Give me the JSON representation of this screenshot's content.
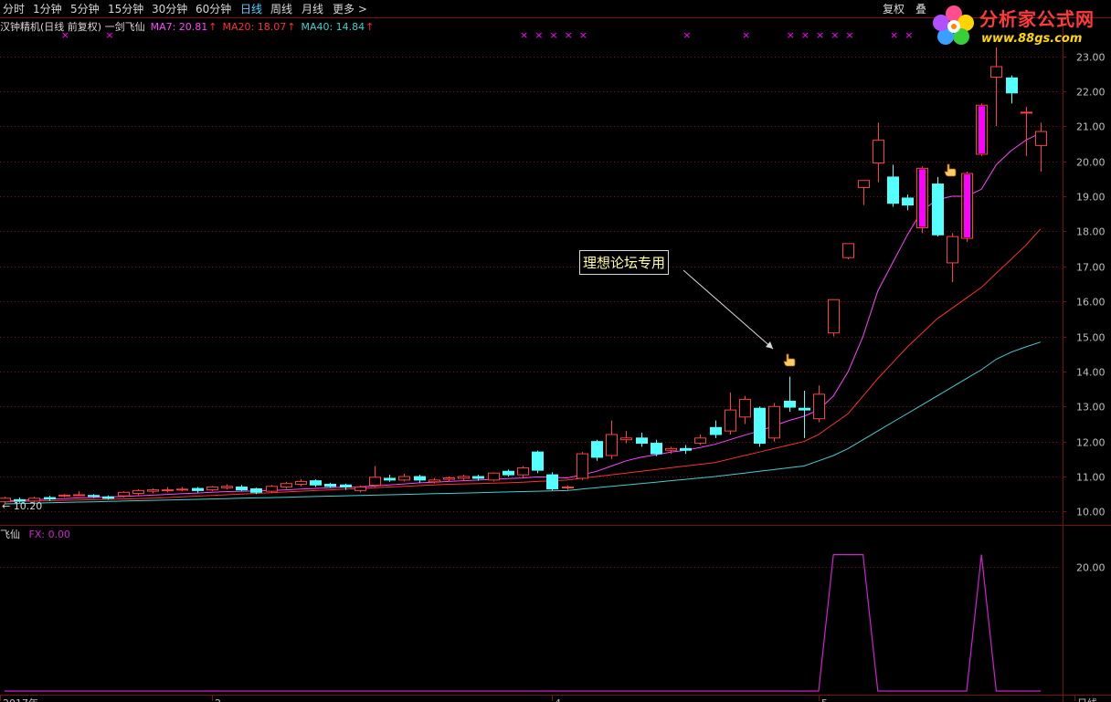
{
  "toolbar": {
    "periods": [
      "分时",
      "1分钟",
      "5分钟",
      "15分钟",
      "30分钟",
      "60分钟",
      "日线",
      "周线",
      "月线",
      "更多 >"
    ],
    "active_period": "日线",
    "right_buttons": [
      "复权",
      "叠"
    ]
  },
  "logo": {
    "title": "分析家公式网",
    "url": "www.88gs.com",
    "icon": "flower-logo-icon"
  },
  "legend": {
    "title": "汉钟精机(日线 前复权) 一剑飞仙",
    "ma7": "MA7: 20.81",
    "ma20": "MA20: 18.07",
    "ma40": "MA40: 14.84",
    "up_arrow": "↑"
  },
  "colors": {
    "up": "#ff4040",
    "down": "#54ffff",
    "ma7": "#ff44ff",
    "ma20": "#ff3030",
    "ma40": "#40d0d0",
    "signal": "#ff00ff",
    "fx": "#d020d0",
    "grid": "#7a1010",
    "axis_text": "#c0c0c0"
  },
  "annotation": {
    "text": "理想论坛专用",
    "icon": "pointing-hand-icon"
  },
  "low_label": "← 10.20",
  "sub_legend": {
    "title": "飞仙",
    "fx": "FX: 0.00"
  },
  "chart_data": [
    {
      "type": "candlestick",
      "ylim": [
        9.75,
        23.3
      ],
      "yticks": [
        10,
        11,
        12,
        13,
        14,
        15,
        16,
        17,
        18,
        19,
        20,
        21,
        22,
        23
      ],
      "ytick_labels": [
        "10.00",
        "11.00",
        "12.00",
        "13.00",
        "14.00",
        "15.00",
        "16.00",
        "17.00",
        "18.00",
        "19.00",
        "20.00",
        "21.00",
        "22.00",
        "23.00"
      ],
      "x_labels": [
        "2017年",
        "2",
        "4",
        "5",
        "日线"
      ],
      "candles": [
        [
          10.28,
          10.38,
          10.42,
          10.22
        ],
        [
          10.34,
          10.3,
          10.4,
          10.25
        ],
        [
          10.3,
          10.38,
          10.42,
          10.26
        ],
        [
          10.4,
          10.36,
          10.45,
          10.3
        ],
        [
          10.46,
          10.47,
          10.5,
          10.41
        ],
        [
          10.47,
          10.48,
          10.58,
          10.44
        ],
        [
          10.46,
          10.43,
          10.5,
          10.39
        ],
        [
          10.42,
          10.38,
          10.46,
          10.34
        ],
        [
          10.45,
          10.55,
          10.58,
          10.4
        ],
        [
          10.52,
          10.6,
          10.64,
          10.47
        ],
        [
          10.58,
          10.62,
          10.66,
          10.52
        ],
        [
          10.6,
          10.62,
          10.7,
          10.55
        ],
        [
          10.62,
          10.64,
          10.7,
          10.58
        ],
        [
          10.66,
          10.6,
          10.7,
          10.54
        ],
        [
          10.62,
          10.7,
          10.73,
          10.58
        ],
        [
          10.68,
          10.72,
          10.78,
          10.63
        ],
        [
          10.7,
          10.62,
          10.76,
          10.58
        ],
        [
          10.65,
          10.55,
          10.68,
          10.5
        ],
        [
          10.58,
          10.72,
          10.76,
          10.53
        ],
        [
          10.7,
          10.8,
          10.85,
          10.65
        ],
        [
          10.78,
          10.86,
          10.92,
          10.72
        ],
        [
          10.88,
          10.76,
          10.92,
          10.7
        ],
        [
          10.78,
          10.72,
          10.82,
          10.68
        ],
        [
          10.76,
          10.7,
          10.8,
          10.62
        ],
        [
          10.6,
          10.7,
          10.74,
          10.55
        ],
        [
          10.75,
          10.98,
          11.3,
          10.7
        ],
        [
          10.95,
          10.9,
          11.05,
          10.85
        ],
        [
          10.9,
          11.0,
          11.08,
          10.86
        ],
        [
          11.0,
          10.9,
          11.05,
          10.82
        ],
        [
          10.85,
          10.9,
          10.96,
          10.8
        ],
        [
          10.92,
          10.96,
          11.0,
          10.86
        ],
        [
          10.95,
          11.0,
          11.05,
          10.9
        ],
        [
          11.0,
          10.95,
          11.05,
          10.88
        ],
        [
          10.9,
          11.1,
          11.12,
          10.86
        ],
        [
          11.15,
          11.05,
          11.2,
          11.0
        ],
        [
          11.05,
          11.25,
          11.3,
          10.98
        ],
        [
          11.7,
          11.18,
          11.74,
          11.1
        ],
        [
          11.05,
          10.65,
          11.12,
          10.6
        ],
        [
          10.7,
          10.7,
          10.75,
          10.62
        ],
        [
          10.95,
          11.65,
          11.7,
          10.9
        ],
        [
          12.0,
          11.55,
          12.05,
          11.45
        ],
        [
          11.6,
          12.2,
          12.6,
          11.5
        ],
        [
          12.05,
          12.1,
          12.3,
          11.95
        ],
        [
          12.1,
          11.95,
          12.25,
          11.85
        ],
        [
          11.95,
          11.65,
          12.05,
          11.58
        ],
        [
          11.75,
          11.8,
          11.85,
          11.65
        ],
        [
          11.8,
          11.75,
          11.9,
          11.65
        ],
        [
          11.95,
          12.1,
          12.2,
          11.9
        ],
        [
          12.4,
          12.2,
          12.6,
          12.1
        ],
        [
          12.3,
          12.9,
          13.4,
          12.2
        ],
        [
          12.7,
          13.2,
          13.3,
          12.5
        ],
        [
          12.95,
          11.95,
          13.0,
          11.85
        ],
        [
          12.1,
          13.0,
          13.1,
          12.0
        ],
        [
          13.15,
          12.98,
          13.85,
          12.85
        ],
        [
          12.95,
          12.9,
          13.45,
          12.1
        ],
        [
          12.65,
          13.35,
          13.6,
          12.55
        ],
        [
          15.1,
          16.05,
          16.05,
          15.0
        ],
        [
          17.25,
          17.65,
          17.65,
          17.2
        ],
        [
          19.25,
          19.45,
          19.45,
          18.75
        ],
        [
          19.95,
          20.6,
          21.1,
          19.4
        ],
        [
          19.55,
          18.8,
          19.9,
          18.7
        ],
        [
          18.95,
          18.75,
          19.05,
          18.6
        ],
        [
          18.1,
          19.8,
          19.85,
          17.95
        ],
        [
          19.35,
          17.9,
          19.55,
          17.85
        ],
        [
          17.1,
          17.85,
          17.95,
          16.55
        ],
        [
          17.8,
          19.65,
          19.7,
          17.7
        ],
        [
          20.2,
          21.6,
          21.65,
          20.15
        ],
        [
          22.4,
          22.7,
          23.25,
          21.0
        ],
        [
          22.38,
          21.95,
          22.45,
          21.65
        ],
        [
          21.4,
          21.4,
          21.55,
          20.15
        ],
        [
          20.45,
          20.85,
          21.1,
          19.7
        ]
      ],
      "ma_series": [
        {
          "name": "MA7",
          "values": [
            10.3,
            10.32,
            10.34,
            10.36,
            10.37,
            10.39,
            10.4,
            10.42,
            10.43,
            10.45,
            10.47,
            10.49,
            10.51,
            10.53,
            10.55,
            10.57,
            10.58,
            10.59,
            10.6,
            10.62,
            10.64,
            10.66,
            10.68,
            10.7,
            10.71,
            10.73,
            10.76,
            10.79,
            10.82,
            10.84,
            10.86,
            10.88,
            10.9,
            10.92,
            10.94,
            10.96,
            10.99,
            10.98,
            10.96,
            11.05,
            11.15,
            11.3,
            11.45,
            11.55,
            11.62,
            11.7,
            11.75,
            11.83,
            11.92,
            12.05,
            12.18,
            12.3,
            12.45,
            12.6,
            12.72,
            12.9,
            13.3,
            14.0,
            15.0,
            16.3,
            17.1,
            17.9,
            18.6,
            18.9,
            19.0,
            19.0,
            19.2,
            19.9,
            20.3,
            20.6,
            20.81
          ]
        },
        {
          "name": "MA20",
          "values": [
            10.28,
            10.29,
            10.3,
            10.31,
            10.32,
            10.33,
            10.34,
            10.35,
            10.36,
            10.37,
            10.38,
            10.4,
            10.42,
            10.44,
            10.46,
            10.48,
            10.5,
            10.52,
            10.54,
            10.56,
            10.58,
            10.6,
            10.62,
            10.64,
            10.66,
            10.68,
            10.7,
            10.72,
            10.74,
            10.76,
            10.78,
            10.79,
            10.8,
            10.81,
            10.82,
            10.84,
            10.86,
            10.88,
            10.9,
            10.95,
            11.0,
            11.05,
            11.1,
            11.15,
            11.2,
            11.25,
            11.3,
            11.35,
            11.4,
            11.5,
            11.6,
            11.7,
            11.8,
            11.9,
            12.0,
            12.2,
            12.5,
            12.8,
            13.3,
            13.8,
            14.25,
            14.7,
            15.1,
            15.5,
            15.8,
            16.1,
            16.4,
            16.8,
            17.2,
            17.6,
            18.07
          ]
        },
        {
          "name": "MA40",
          "values": [
            10.22,
            10.23,
            10.24,
            10.25,
            10.26,
            10.27,
            10.28,
            10.29,
            10.3,
            10.31,
            10.32,
            10.33,
            10.34,
            10.35,
            10.36,
            10.37,
            10.38,
            10.39,
            10.4,
            10.41,
            10.42,
            10.43,
            10.44,
            10.45,
            10.46,
            10.47,
            10.48,
            10.49,
            10.5,
            10.51,
            10.52,
            10.53,
            10.54,
            10.55,
            10.56,
            10.57,
            10.58,
            10.59,
            10.6,
            10.64,
            10.68,
            10.72,
            10.76,
            10.8,
            10.84,
            10.88,
            10.92,
            10.96,
            11.0,
            11.05,
            11.1,
            11.15,
            11.2,
            11.25,
            11.3,
            11.45,
            11.6,
            11.8,
            12.05,
            12.3,
            12.55,
            12.8,
            13.05,
            13.3,
            13.55,
            13.8,
            14.05,
            14.35,
            14.55,
            14.7,
            14.84
          ]
        }
      ],
      "signal_marks": [
        "×",
        "×",
        "×",
        "×",
        "×",
        "×",
        "×",
        "×",
        "×",
        "×",
        "×",
        "×",
        "×",
        "×",
        "×",
        "×",
        "×",
        "×"
      ]
    },
    {
      "type": "line",
      "series": [
        {
          "name": "FX",
          "values": [
            0,
            0,
            0,
            0,
            0,
            0,
            0,
            0,
            0,
            0,
            0,
            0,
            0,
            0,
            0,
            0,
            0,
            0,
            0,
            0,
            0,
            0,
            0,
            0,
            0,
            0,
            0,
            0,
            0,
            0,
            0,
            0,
            0,
            0,
            0,
            0,
            0,
            0,
            0,
            0,
            0,
            0,
            0,
            0,
            0,
            0,
            0,
            0,
            0,
            0,
            0,
            0,
            0,
            0,
            0,
            0,
            22,
            22,
            22,
            0,
            0,
            0,
            0,
            0,
            0,
            0,
            22,
            0,
            0,
            0,
            0
          ]
        }
      ],
      "ylim": [
        0,
        24
      ],
      "yticks": [
        20
      ],
      "ytick_labels": [
        "20.00"
      ]
    }
  ]
}
